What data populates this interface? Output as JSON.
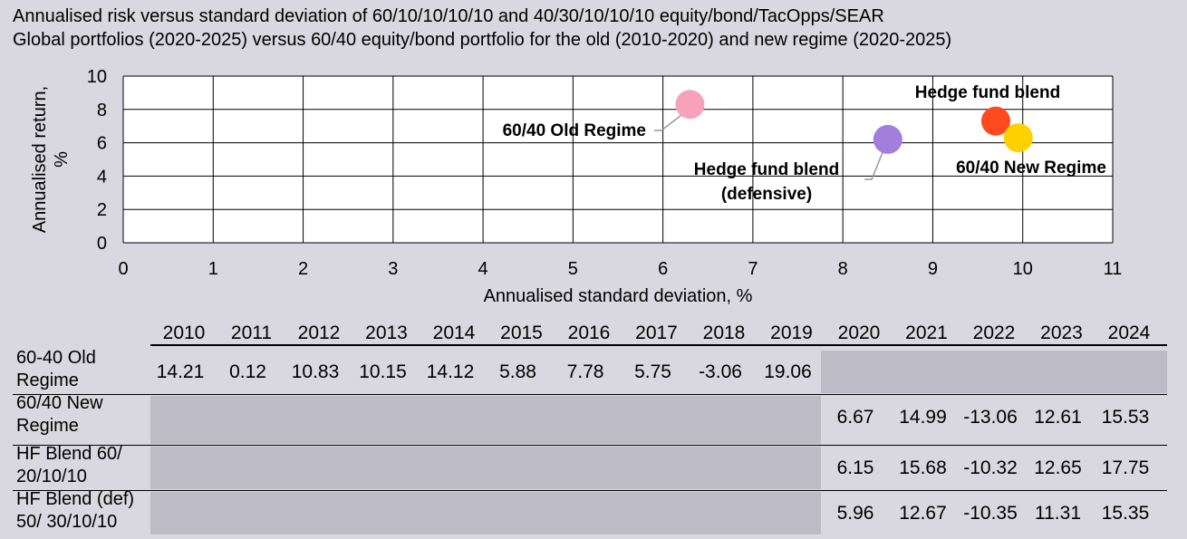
{
  "title_lines": [
    "Annualised risk versus standard deviation of 60/10/10/10/10 and 40/30/10/10/10 equity/bond/TacOpps/SEAR",
    "Global portfolios (2020-2025) versus 60/40 equity/bond portfolio for the old (2010-2020) and new regime (2020-2025)"
  ],
  "chart_data": {
    "type": "scatter",
    "xlabel": "Annualised standard deviation, %",
    "ylabel": "Annualised return, %",
    "xlim": [
      0,
      11
    ],
    "ylim": [
      0,
      10
    ],
    "x_ticks": [
      0,
      1,
      2,
      3,
      4,
      5,
      6,
      7,
      8,
      9,
      10,
      11
    ],
    "y_ticks": [
      0,
      2,
      4,
      6,
      8,
      10
    ],
    "grid": true,
    "points": [
      {
        "label_lines": [
          "60/40 Old Regime"
        ],
        "x": 6.3,
        "y": 8.3,
        "color": "#f6a2bb"
      },
      {
        "label_lines": [
          "Hedge fund blend",
          "(defensive)"
        ],
        "x": 8.5,
        "y": 6.2,
        "color": "#a27fdc"
      },
      {
        "label_lines": [
          "Hedge fund blend"
        ],
        "x": 9.7,
        "y": 7.3,
        "color": "#ff4a1f"
      },
      {
        "label_lines": [
          "60/40 New Regime"
        ],
        "x": 9.95,
        "y": 6.3,
        "color": "#ffd000"
      }
    ]
  },
  "table": {
    "years": [
      "2010",
      "2011",
      "2012",
      "2013",
      "2014",
      "2015",
      "2016",
      "2017",
      "2018",
      "2019",
      "2020",
      "2021",
      "2022",
      "2023",
      "2024"
    ],
    "rows": [
      {
        "label": "60-40 Old\nRegime",
        "values": [
          "14.21",
          "0.12",
          "10.83",
          "10.15",
          "14.12",
          "5.88",
          "7.78",
          "5.75",
          "-3.06",
          "19.06",
          "",
          "",
          "",
          "",
          ""
        ]
      },
      {
        "label": "60/40 New\nRegime",
        "values": [
          "",
          "",
          "",
          "",
          "",
          "",
          "",
          "",
          "",
          "",
          "6.67",
          "14.99",
          "-13.06",
          "12.61",
          "15.53"
        ]
      },
      {
        "label": "HF Blend 60/\n20/10/10",
        "values": [
          "",
          "",
          "",
          "",
          "",
          "",
          "",
          "",
          "",
          "",
          "6.15",
          "15.68",
          "-10.32",
          "12.65",
          "17.75"
        ]
      },
      {
        "label": "HF Blend (def)\n50/ 30/10/10",
        "values": [
          "",
          "",
          "",
          "",
          "",
          "",
          "",
          "",
          "",
          "",
          "5.96",
          "12.67",
          "-10.35",
          "11.31",
          "15.35"
        ]
      }
    ]
  }
}
